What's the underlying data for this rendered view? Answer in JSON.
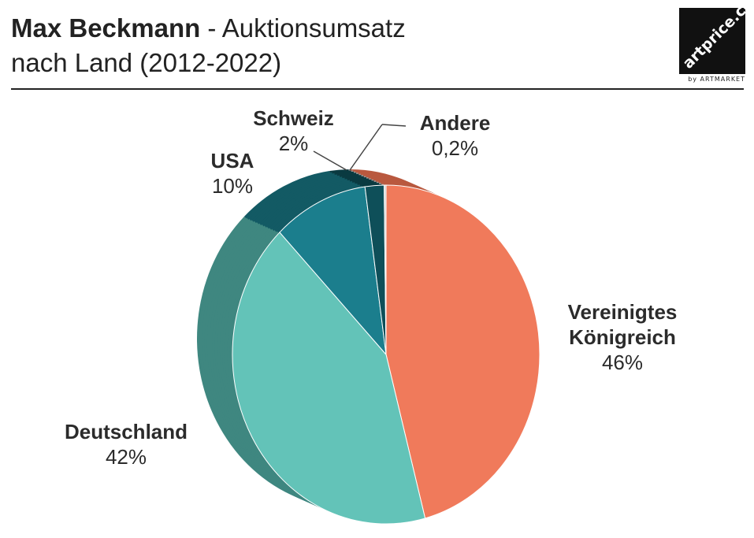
{
  "header": {
    "title_bold": "Max Beckmann",
    "title_rest": " - Auktionsumsatz",
    "title_line2": "nach Land (2012-2022)"
  },
  "logo": {
    "text": "artprice.com",
    "sub": "by ARTMARKET"
  },
  "chart_data": {
    "type": "pie",
    "title": "Max Beckmann - Auktionsumsatz nach Land (2012-2022)",
    "slices": [
      {
        "label": "Vereinigtes Königreich",
        "label_lines": [
          "Vereinigtes",
          "Königreich"
        ],
        "value": 46,
        "display": "46%",
        "color": "#f07a5b",
        "side_color": "#b9593f"
      },
      {
        "label": "Deutschland",
        "label_lines": [
          "Deutschland"
        ],
        "value": 42,
        "display": "42%",
        "color": "#63c3b8",
        "side_color": "#3f8780"
      },
      {
        "label": "USA",
        "label_lines": [
          "USA"
        ],
        "value": 10,
        "display": "10%",
        "color": "#1b7e8d",
        "side_color": "#135a64"
      },
      {
        "label": "Schweiz",
        "label_lines": [
          "Schweiz"
        ],
        "value": 2,
        "display": "2%",
        "color": "#0e4f59",
        "side_color": "#0a3a41"
      },
      {
        "label": "Andere",
        "label_lines": [
          "Andere"
        ],
        "value": 0.2,
        "display": "0,2%",
        "color": "#cfcfcf",
        "side_color": "#9a9a9a"
      }
    ]
  }
}
